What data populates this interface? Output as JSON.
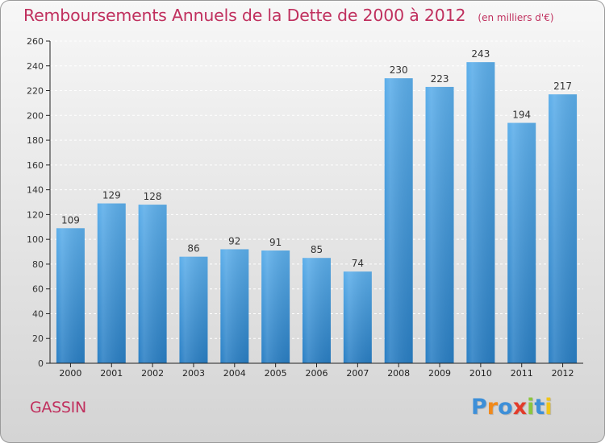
{
  "header": {
    "title": "Remboursements Annuels de la Dette de 2000 à 2012",
    "unit": "(en milliers d'€)"
  },
  "footer": {
    "commune": "GASSIN",
    "brand": "Proxiti",
    "brand_letters": [
      {
        "ch": "P",
        "color": "#3d8fd8"
      },
      {
        "ch": "r",
        "color": "#f08a1c"
      },
      {
        "ch": "o",
        "color": "#3d8fd8"
      },
      {
        "ch": "x",
        "color": "#e23b2a"
      },
      {
        "ch": "i",
        "color": "#8cc63f"
      },
      {
        "ch": "t",
        "color": "#3d8fd8"
      },
      {
        "ch": "i",
        "color": "#f0c419"
      }
    ]
  },
  "colors": {
    "title": "#c0305e",
    "bar_top": "#5caeea",
    "bar_bottom": "#2a7fc4",
    "grid": "#ffffff",
    "axis": "#222222"
  },
  "chart_data": {
    "type": "bar",
    "title": "Remboursements Annuels de la Dette de 2000 à 2012",
    "subtitle": "(en milliers d'€)",
    "xlabel": "",
    "ylabel": "",
    "categories": [
      "2000",
      "2001",
      "2002",
      "2003",
      "2004",
      "2005",
      "2006",
      "2007",
      "2008",
      "2009",
      "2010",
      "2011",
      "2012"
    ],
    "values": [
      109,
      129,
      128,
      86,
      92,
      91,
      85,
      74,
      230,
      223,
      243,
      194,
      217
    ],
    "ylim": [
      0,
      260
    ],
    "yticks": [
      0,
      20,
      40,
      60,
      80,
      100,
      120,
      140,
      160,
      180,
      200,
      220,
      240,
      260
    ],
    "grid": true,
    "data_labels": true
  }
}
